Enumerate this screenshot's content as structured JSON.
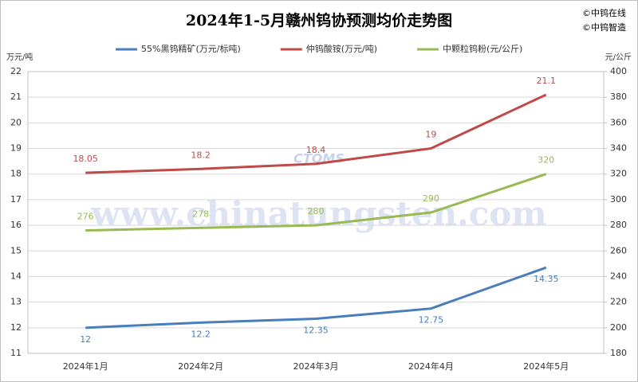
{
  "chart_data": {
    "type": "line",
    "title": "2024年1-5月赣州钨协预测均价走势图",
    "credits": [
      "©中钨在线",
      "©中钨智造"
    ],
    "watermark": [
      "CTOMS",
      "www.chinatungsten.com"
    ],
    "y_label": "万元/吨",
    "y2_label": "元/公斤",
    "categories": [
      "2024年1月",
      "2024年2月",
      "2024年3月",
      "2024年4月",
      "2024年5月"
    ],
    "series": [
      {
        "name": "55%黑钨精矿(万元/标吨)",
        "color": "#4a7ebb",
        "label_position": "below",
        "values": [
          12,
          12.2,
          12.35,
          12.75,
          14.35
        ]
      },
      {
        "name": "仲钨酸铵(万元/吨)",
        "color": "#be4b48",
        "label_position": "above",
        "values": [
          18.05,
          18.2,
          18.4,
          19,
          21.1
        ]
      },
      {
        "name": "中颗粒钨粉(元/公斤)",
        "color": "#98b954",
        "label_position": "above",
        "axis": "y2",
        "values": [
          276,
          278,
          280,
          290,
          320
        ]
      }
    ],
    "ylim": [
      11,
      22
    ],
    "yticks": [
      11,
      12,
      13,
      14,
      15,
      16,
      17,
      18,
      19,
      20,
      21,
      22
    ],
    "y2lim": [
      180,
      400
    ],
    "y2ticks": [
      180,
      200,
      220,
      240,
      260,
      280,
      300,
      320,
      340,
      360,
      380,
      400
    ],
    "grid": true,
    "legend": "top"
  }
}
